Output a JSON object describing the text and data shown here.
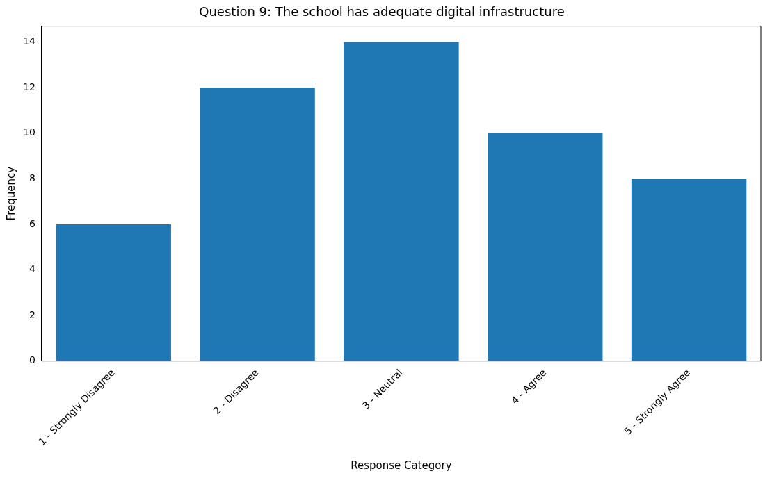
{
  "chart_data": {
    "type": "bar",
    "title": "Question 9: The school has adequate digital infrastructure",
    "xlabel": "Response Category",
    "ylabel": "Frequency",
    "categories": [
      "1 - Strongly Disagree",
      "2 - Disagree",
      "3 - Neutral",
      "4 - Agree",
      "5 - Strongly Agree"
    ],
    "values": [
      6,
      12,
      14,
      10,
      8
    ],
    "color": "#1f77b4",
    "ylim": [
      0,
      14.7
    ],
    "yticks": [
      0,
      2,
      4,
      6,
      8,
      10,
      12,
      14
    ],
    "grid": false,
    "legend": false
  }
}
